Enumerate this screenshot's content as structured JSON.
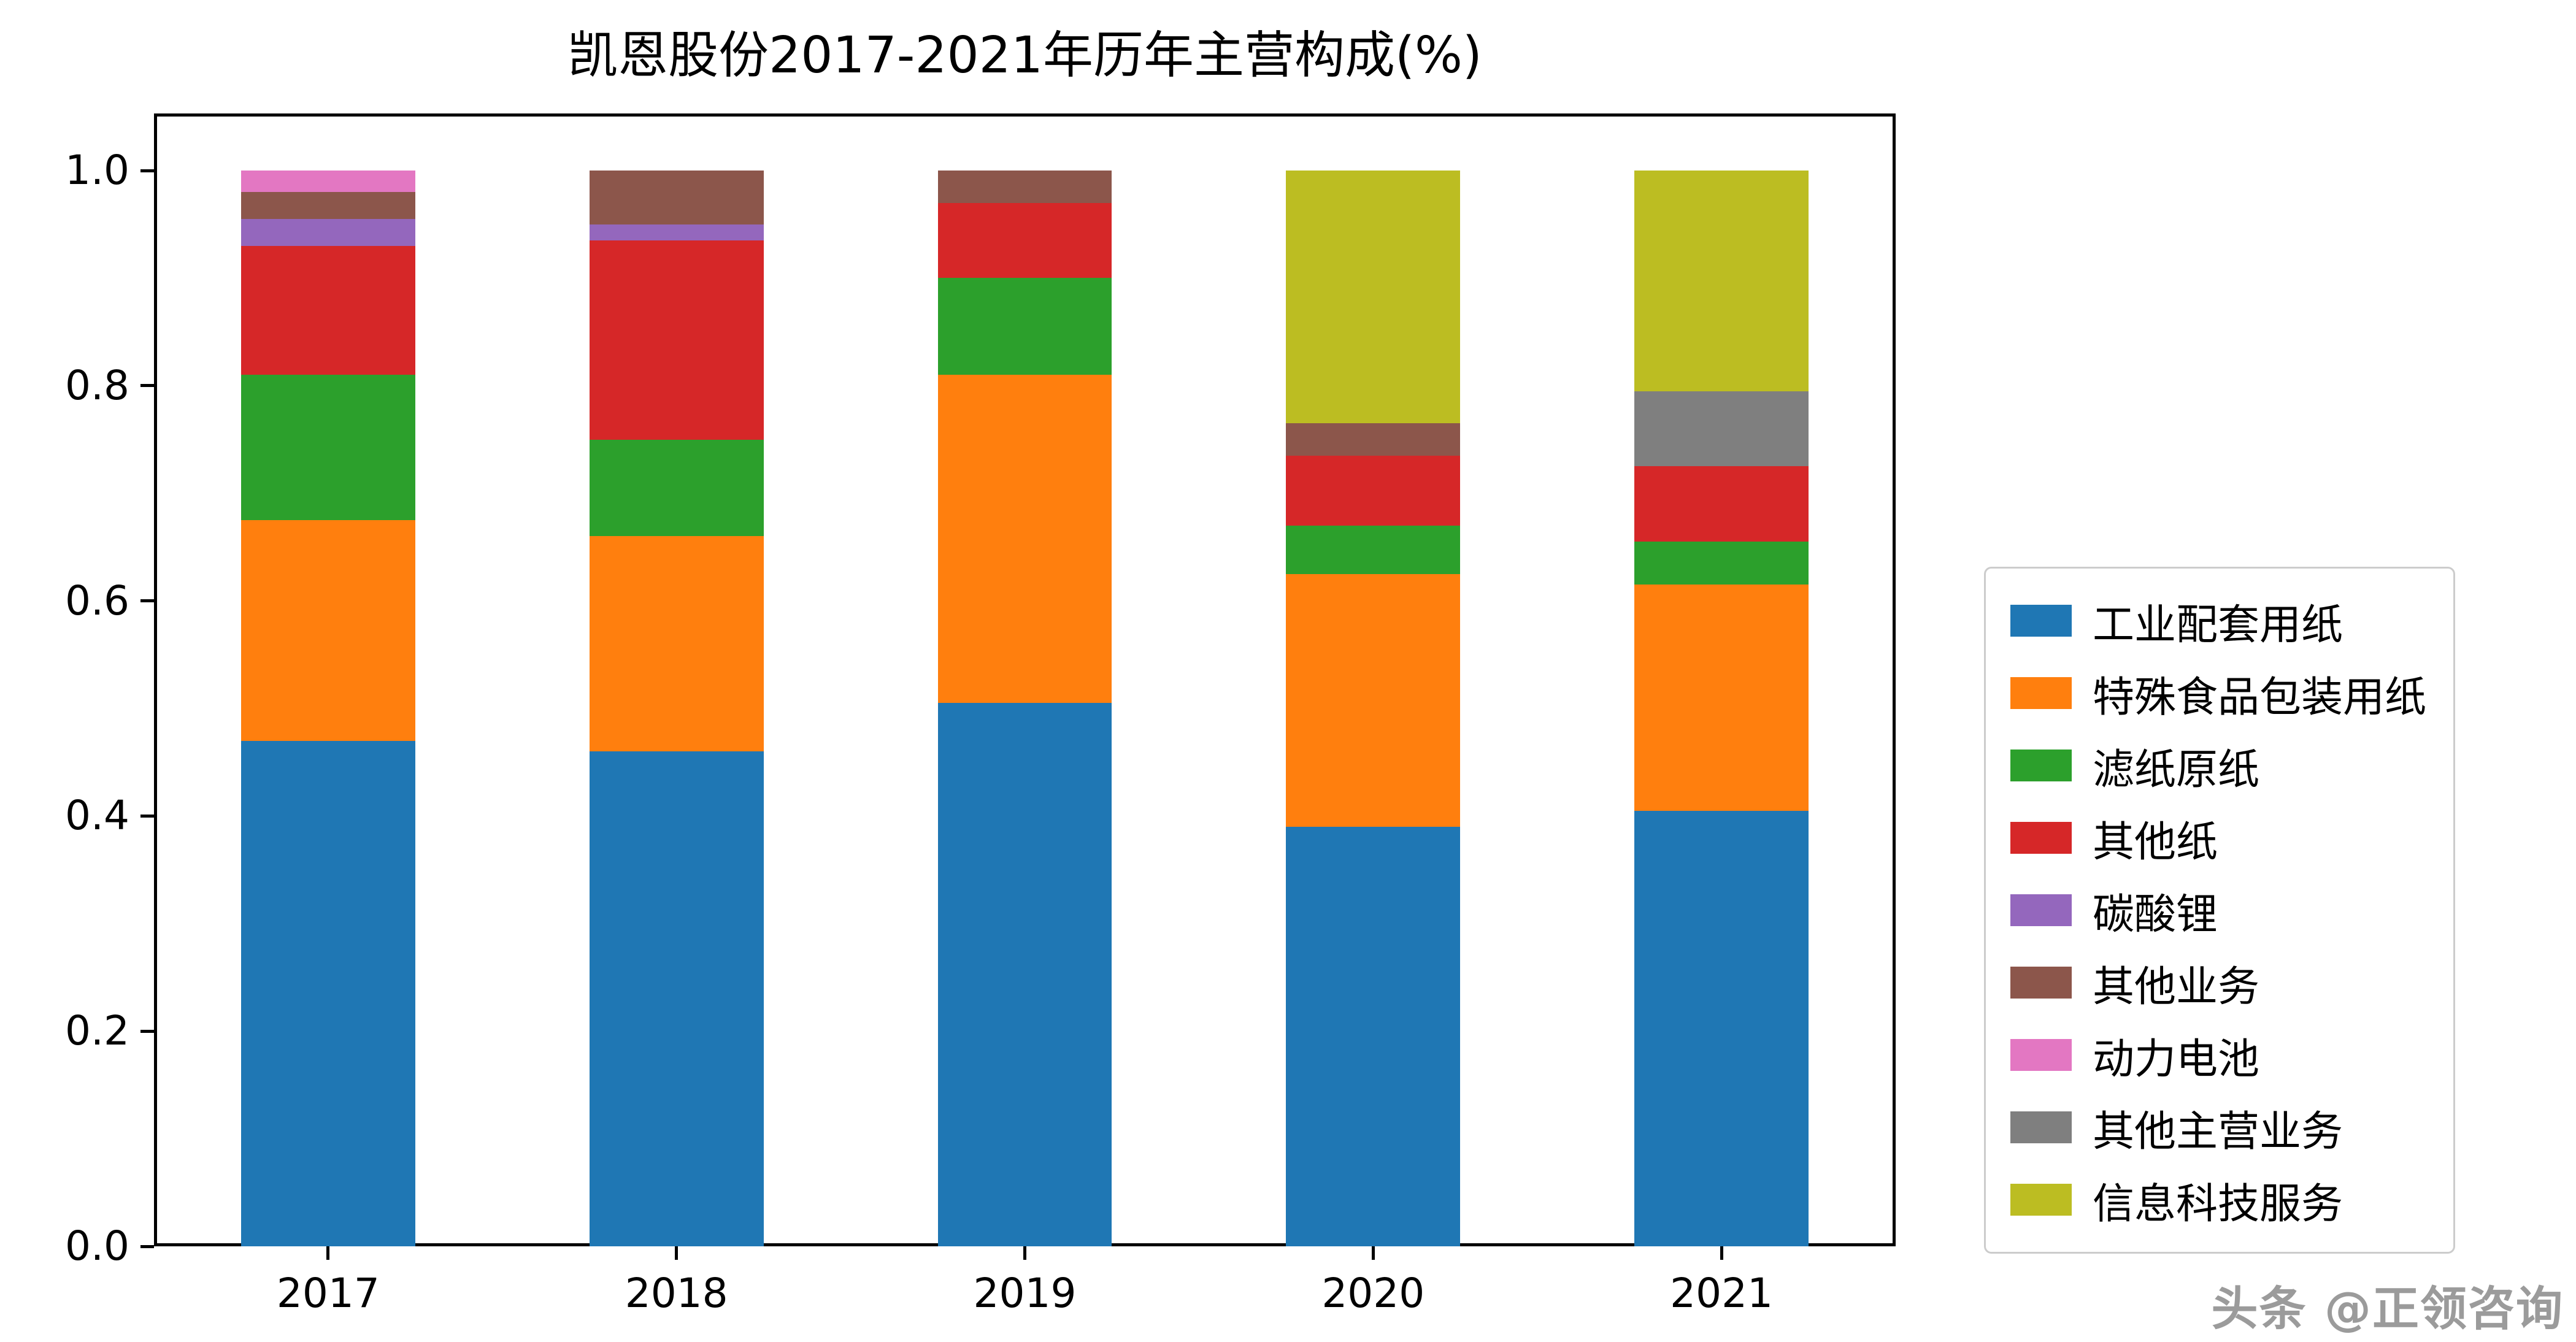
{
  "title": "凯恩股份2017-2021年历年主营构成(%)",
  "watermark": "头条 @正领咨询",
  "chart_data": {
    "type": "bar",
    "stacked": true,
    "title": "凯恩股份2017-2021年历年主营构成(%)",
    "xlabel": "",
    "ylabel": "",
    "ylim": [
      0.0,
      1.0
    ],
    "grid": false,
    "legend_position": "right",
    "yticks": [
      "0.0",
      "0.2",
      "0.4",
      "0.6",
      "0.8",
      "1.0"
    ],
    "categories": [
      "2017",
      "2018",
      "2019",
      "2020",
      "2021"
    ],
    "series": [
      {
        "name": "工业配套用纸",
        "color": "#1f77b4",
        "values": [
          0.47,
          0.46,
          0.505,
          0.39,
          0.405
        ]
      },
      {
        "name": "特殊食品包装用纸",
        "color": "#ff7f0e",
        "values": [
          0.205,
          0.2,
          0.305,
          0.235,
          0.21
        ]
      },
      {
        "name": "滤纸原纸",
        "color": "#2ca02c",
        "values": [
          0.135,
          0.09,
          0.09,
          0.045,
          0.04
        ]
      },
      {
        "name": "其他纸",
        "color": "#d62728",
        "values": [
          0.12,
          0.185,
          0.07,
          0.065,
          0.07
        ]
      },
      {
        "name": "碳酸锂",
        "color": "#9467bd",
        "values": [
          0.025,
          0.015,
          0.0,
          0.0,
          0.0
        ]
      },
      {
        "name": "其他业务",
        "color": "#8c564b",
        "values": [
          0.025,
          0.05,
          0.03,
          0.03,
          0.0
        ]
      },
      {
        "name": "动力电池",
        "color": "#e377c2",
        "values": [
          0.02,
          0.0,
          0.0,
          0.0,
          0.0
        ]
      },
      {
        "name": "其他主营业务",
        "color": "#7f7f7f",
        "values": [
          0.0,
          0.0,
          0.0,
          0.0,
          0.07
        ]
      },
      {
        "name": "信息科技服务",
        "color": "#bcbd22",
        "values": [
          0.0,
          0.0,
          0.0,
          0.235,
          0.205
        ]
      }
    ]
  }
}
